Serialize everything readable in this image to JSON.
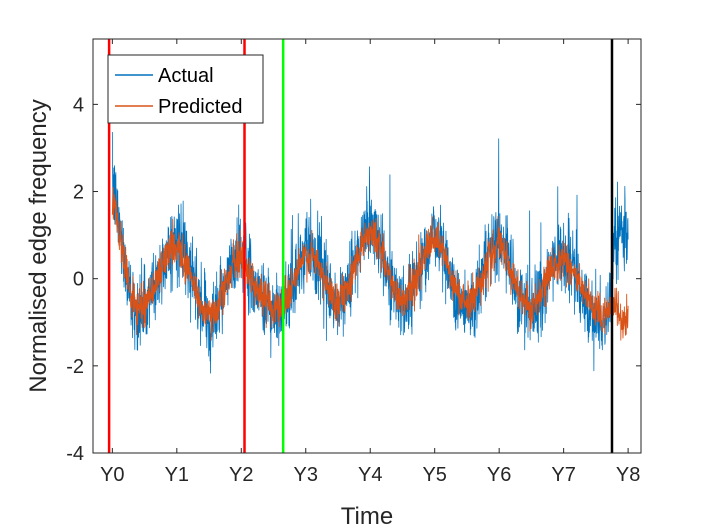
{
  "chart_data": {
    "type": "line",
    "title": "",
    "xlabel": "Time",
    "ylabel": "Normalised edge frequency",
    "xlim": [
      -0.3,
      8.2
    ],
    "ylim": [
      -4,
      5.5
    ],
    "x_ticks": [
      {
        "value": 0,
        "label": "Y0"
      },
      {
        "value": 1,
        "label": "Y1"
      },
      {
        "value": 2,
        "label": "Y2"
      },
      {
        "value": 3,
        "label": "Y3"
      },
      {
        "value": 4,
        "label": "Y4"
      },
      {
        "value": 5,
        "label": "Y5"
      },
      {
        "value": 6,
        "label": "Y6"
      },
      {
        "value": 7,
        "label": "Y7"
      },
      {
        "value": 8,
        "label": "Y8"
      }
    ],
    "y_ticks": [
      {
        "value": -4,
        "label": "-4"
      },
      {
        "value": -2,
        "label": "-2"
      },
      {
        "value": 0,
        "label": "0"
      },
      {
        "value": 2,
        "label": "2"
      },
      {
        "value": 4,
        "label": "4"
      }
    ],
    "legend": {
      "position": "top-left"
    },
    "series": [
      {
        "name": "Actual",
        "color": "#0072BD",
        "x": [
          0.0,
          0.1,
          0.2,
          0.3,
          0.4,
          0.5,
          0.6,
          0.7,
          0.8,
          0.9,
          1.0,
          1.1,
          1.2,
          1.3,
          1.4,
          1.5,
          1.6,
          1.7,
          1.8,
          1.9,
          2.0,
          2.1,
          2.2,
          2.3,
          2.4,
          2.5,
          2.6,
          2.7,
          2.8,
          2.9,
          3.0,
          3.1,
          3.2,
          3.3,
          3.4,
          3.5,
          3.6,
          3.7,
          3.8,
          3.9,
          4.0,
          4.1,
          4.2,
          4.3,
          4.4,
          4.5,
          4.6,
          4.7,
          4.8,
          4.9,
          5.0,
          5.1,
          5.2,
          5.3,
          5.4,
          5.5,
          5.6,
          5.7,
          5.8,
          5.9,
          6.0,
          6.1,
          6.2,
          6.3,
          6.4,
          6.5,
          6.6,
          6.7,
          6.8,
          6.9,
          7.0,
          7.1,
          7.2,
          7.3,
          7.4,
          7.5,
          7.6,
          7.7,
          7.8,
          7.9,
          8.0
        ],
        "y": [
          2.2,
          1.3,
          0.3,
          -0.5,
          -0.8,
          -0.7,
          -0.4,
          0.0,
          0.4,
          0.7,
          0.9,
          0.6,
          0.2,
          -0.3,
          -0.8,
          -1.0,
          -0.8,
          -0.4,
          0.0,
          0.4,
          0.6,
          0.2,
          -0.1,
          -0.4,
          -0.6,
          -0.7,
          -0.8,
          -0.5,
          -0.1,
          0.3,
          0.6,
          0.6,
          0.3,
          -0.1,
          -0.4,
          -0.6,
          -0.4,
          0.0,
          0.5,
          1.0,
          1.3,
          1.1,
          0.5,
          0.0,
          -0.4,
          -0.6,
          -0.4,
          0.0,
          0.4,
          0.8,
          1.0,
          0.8,
          0.3,
          -0.2,
          -0.5,
          -0.7,
          -0.5,
          -0.1,
          0.3,
          0.7,
          0.9,
          0.6,
          0.1,
          -0.3,
          -0.6,
          -0.8,
          -0.6,
          -0.2,
          0.2,
          0.5,
          0.6,
          0.4,
          0.0,
          -0.4,
          -0.7,
          -0.9,
          -1.0,
          -0.7,
          1.1,
          1.1,
          1.1
        ]
      },
      {
        "name": "Predicted",
        "color": "#D95319",
        "x": [
          0.0,
          0.1,
          0.2,
          0.3,
          0.4,
          0.5,
          0.6,
          0.7,
          0.8,
          0.9,
          1.0,
          1.1,
          1.2,
          1.3,
          1.4,
          1.5,
          1.6,
          1.7,
          1.8,
          1.9,
          2.0,
          2.1,
          2.2,
          2.3,
          2.4,
          2.5,
          2.6,
          2.7,
          2.8,
          2.9,
          3.0,
          3.1,
          3.2,
          3.3,
          3.4,
          3.5,
          3.6,
          3.7,
          3.8,
          3.9,
          4.0,
          4.1,
          4.2,
          4.3,
          4.4,
          4.5,
          4.6,
          4.7,
          4.8,
          4.9,
          5.0,
          5.1,
          5.2,
          5.3,
          5.4,
          5.5,
          5.6,
          5.7,
          5.8,
          5.9,
          6.0,
          6.1,
          6.2,
          6.3,
          6.4,
          6.5,
          6.6,
          6.7,
          6.8,
          6.9,
          7.0,
          7.1,
          7.2,
          7.3,
          7.4,
          7.5,
          7.6,
          7.7,
          7.8,
          7.9,
          8.0
        ],
        "y": [
          1.9,
          1.1,
          0.3,
          -0.4,
          -0.7,
          -0.6,
          -0.3,
          0.0,
          0.4,
          0.7,
          0.8,
          0.5,
          0.1,
          -0.3,
          -0.7,
          -0.9,
          -0.7,
          -0.3,
          0.0,
          0.4,
          0.5,
          0.2,
          -0.1,
          -0.4,
          -0.5,
          -0.6,
          -0.7,
          -0.4,
          -0.1,
          0.3,
          0.5,
          0.5,
          0.3,
          -0.1,
          -0.4,
          -0.5,
          -0.3,
          0.0,
          0.5,
          0.9,
          1.1,
          0.9,
          0.5,
          0.0,
          -0.3,
          -0.5,
          -0.3,
          0.0,
          0.4,
          0.7,
          0.9,
          0.7,
          0.3,
          -0.2,
          -0.4,
          -0.6,
          -0.4,
          -0.1,
          0.3,
          0.6,
          0.8,
          0.5,
          0.1,
          -0.3,
          -0.5,
          -0.7,
          -0.5,
          -0.2,
          0.2,
          0.4,
          0.5,
          0.3,
          0.0,
          -0.3,
          -0.6,
          -0.8,
          -0.9,
          -0.6,
          -0.6,
          -1.0,
          -0.9
        ]
      }
    ],
    "vertical_lines": [
      {
        "x": -0.05,
        "color": "#FF0000"
      },
      {
        "x": 2.05,
        "color": "#FF0000"
      },
      {
        "x": 2.65,
        "color": "#00FF00"
      },
      {
        "x": 7.75,
        "color": "#000000"
      }
    ]
  }
}
